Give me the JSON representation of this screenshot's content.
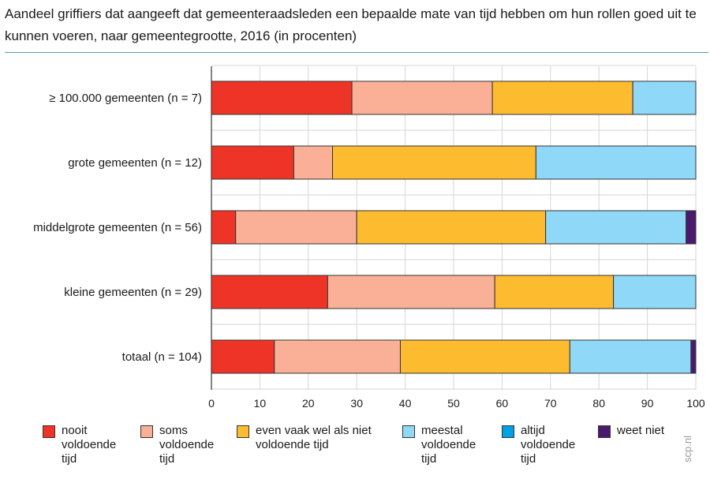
{
  "chart_data": {
    "type": "bar",
    "orientation": "horizontal",
    "stacked": true,
    "title": "Aandeel griffiers dat aangeeft dat gemeenteraadsleden een bepaalde mate van tijd hebben om hun rollen goed uit te kunnen voeren, naar gemeentegrootte, 2016 (in procenten)",
    "categories": [
      "≥ 100.000 gemeenten (n = 7)",
      "grote gemeenten (n = 12)",
      "middelgrote gemeenten (n = 56)",
      "kleine gemeenten (n = 29)",
      "totaal (n = 104)"
    ],
    "series": [
      {
        "name": "nooit voldoende tijd",
        "color": "#ee3427",
        "values": [
          29,
          17,
          5,
          24,
          13
        ]
      },
      {
        "name": "soms voldoende tijd",
        "color": "#f9b096",
        "values": [
          29,
          8,
          25,
          34.5,
          26
        ]
      },
      {
        "name": "even vaak wel als niet voldoende tijd",
        "color": "#fdbb30",
        "values": [
          29,
          42,
          39,
          24.5,
          35
        ]
      },
      {
        "name": "meestal voldoende tijd",
        "color": "#8fd8f8",
        "values": [
          13,
          33,
          29,
          17,
          25
        ]
      },
      {
        "name": "altijd voldoende tijd",
        "color": "#00a0e3",
        "values": [
          0,
          0,
          0,
          0,
          0
        ]
      },
      {
        "name": "weet niet",
        "color": "#4a1a6e",
        "values": [
          0,
          0,
          2,
          0,
          1
        ]
      }
    ],
    "xlim": [
      0,
      100
    ],
    "xticks": [
      "0",
      "10",
      "20",
      "30",
      "40",
      "50",
      "60",
      "70",
      "80",
      "90",
      "100"
    ],
    "grid": true,
    "legend": "bottom"
  },
  "legend_lines": [
    [
      "nooit",
      "voldoende",
      "tijd"
    ],
    [
      "soms",
      "voldoende",
      "tijd"
    ],
    [
      "even vaak wel als niet",
      "voldoende tijd"
    ],
    [
      "meestal",
      "voldoende",
      "tijd"
    ],
    [
      "altijd",
      "voldoende",
      "tijd"
    ],
    [
      "weet niet"
    ]
  ],
  "credit": "scp.nl"
}
